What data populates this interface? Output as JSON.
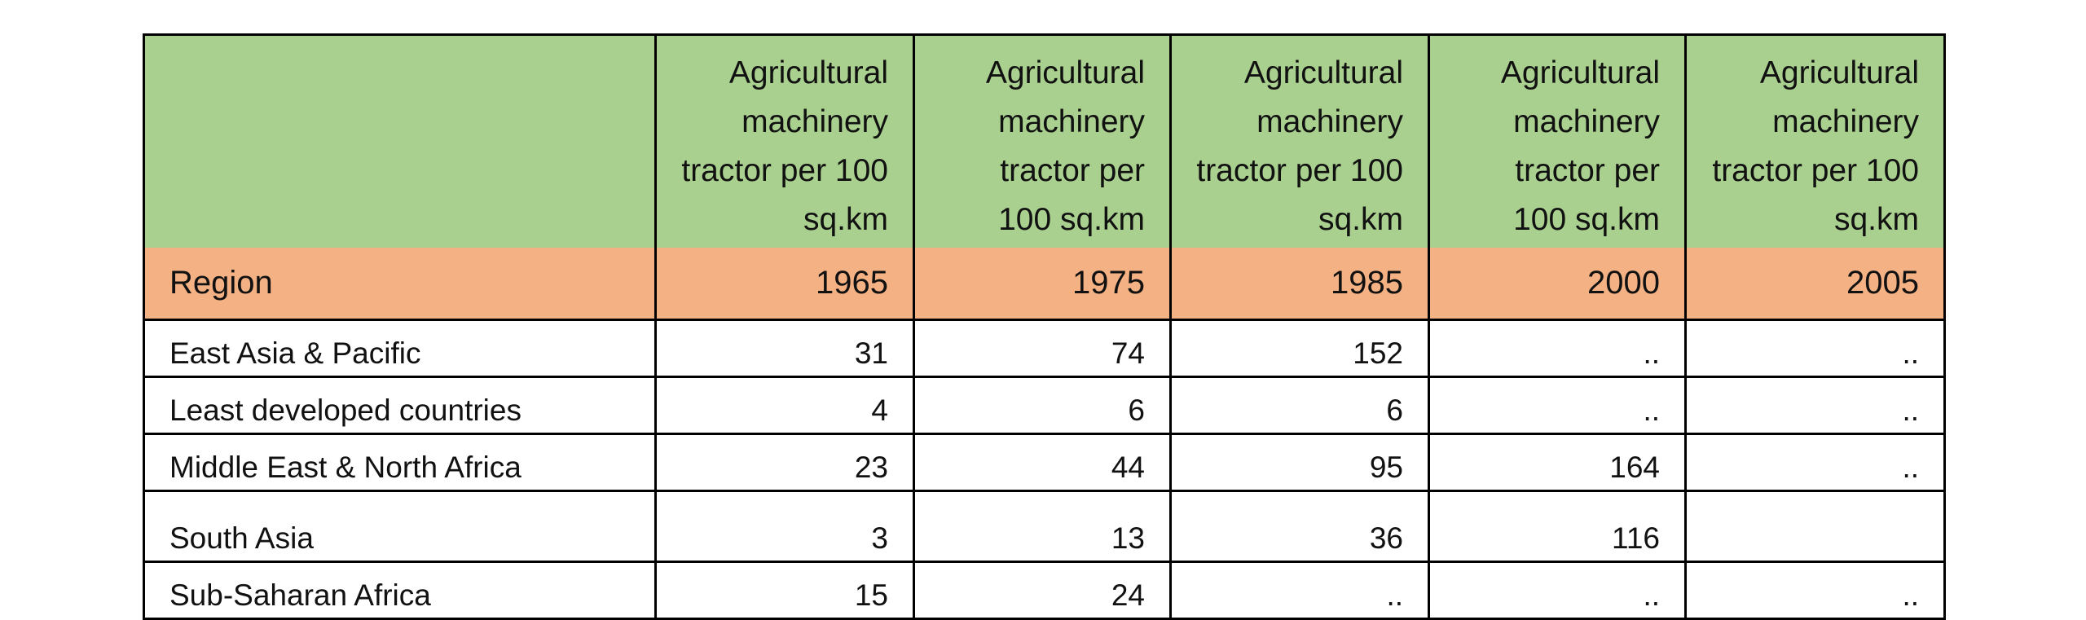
{
  "table": {
    "header": {
      "measures": [
        "Agricultural machinery tractor per 100 sq.km",
        "Agricultural machinery tractor per 100 sq.km",
        "Agricultural machinery tractor per 100 sq.km",
        "Agricultural machinery tractor per 100 sq.km",
        "Agricultural machinery tractor per 100 sq.km"
      ],
      "region_label": "Region",
      "years": [
        1965,
        1975,
        1985,
        2000,
        2005
      ]
    },
    "rows": [
      {
        "region": "East Asia & Pacific",
        "values": [
          31,
          74,
          152,
          "..",
          ".."
        ]
      },
      {
        "region": "Least developed countries",
        "values": [
          4,
          6,
          6,
          "..",
          ".."
        ]
      },
      {
        "region": "Middle East & North Africa",
        "values": [
          23,
          44,
          95,
          164,
          ".."
        ]
      },
      {
        "region": "South Asia",
        "values": [
          3,
          13,
          36,
          116,
          null
        ]
      },
      {
        "region": "Sub-Saharan Africa",
        "values": [
          15,
          24,
          "..",
          "..",
          ".."
        ]
      }
    ]
  }
}
